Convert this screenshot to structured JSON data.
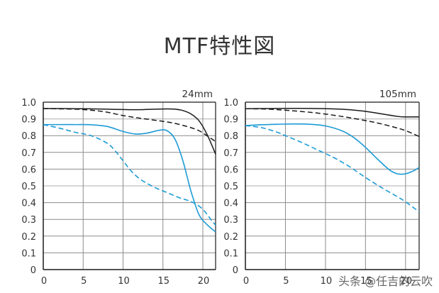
{
  "title": "MTF特性図",
  "watermark": "头条 @任吉的云吹",
  "colors": {
    "black_line": "#1a1a1a",
    "blue_line": "#1d9bd6",
    "grid_dark": "#8c8c8c",
    "grid_light": "#c8c8c8",
    "axis": "#1a1a1a",
    "text": "#333333"
  },
  "chart_data": [
    {
      "type": "line",
      "title": "24mm",
      "xlabel": "",
      "ylabel": "",
      "xlim": [
        0,
        21.6
      ],
      "ylim": [
        0,
        1.0
      ],
      "x_ticks": [
        0,
        5,
        10,
        15,
        20
      ],
      "y_ticks": [
        0,
        0.1,
        0.2,
        0.3,
        0.4,
        0.5,
        0.6,
        0.7,
        0.8,
        0.9,
        1.0
      ],
      "y_tick_labels": [
        "0",
        "0.1",
        "0.2",
        "0.3",
        "0.4",
        "0.5",
        "0.6",
        "0.7",
        "0.8",
        "0.9",
        "1.0"
      ],
      "grid": true,
      "legend": "none",
      "series": [
        {
          "name": "black-solid",
          "color": "#1a1a1a",
          "dash": false,
          "x": [
            0,
            2,
            4,
            6,
            8,
            10,
            12,
            14,
            15.5,
            16.5,
            17.5,
            18.5,
            19.5,
            20.5,
            21.6
          ],
          "y": [
            0.962,
            0.962,
            0.961,
            0.96,
            0.958,
            0.956,
            0.955,
            0.958,
            0.96,
            0.958,
            0.95,
            0.93,
            0.89,
            0.81,
            0.69
          ]
        },
        {
          "name": "black-dashed",
          "color": "#1a1a1a",
          "dash": true,
          "x": [
            0,
            2,
            4,
            6,
            8,
            10,
            12,
            14,
            16,
            18,
            19.5,
            20.5,
            21.6
          ],
          "y": [
            0.962,
            0.96,
            0.958,
            0.952,
            0.94,
            0.92,
            0.905,
            0.892,
            0.878,
            0.855,
            0.83,
            0.8,
            0.765
          ]
        },
        {
          "name": "blue-solid",
          "color": "#1d9bd6",
          "dash": false,
          "x": [
            0,
            2,
            4,
            6,
            8,
            10,
            11.5,
            13,
            14.5,
            15.5,
            16.5,
            17.5,
            18.5,
            19.5,
            20.5,
            21.6
          ],
          "y": [
            0.866,
            0.866,
            0.866,
            0.865,
            0.855,
            0.825,
            0.81,
            0.815,
            0.832,
            0.83,
            0.78,
            0.65,
            0.47,
            0.33,
            0.27,
            0.225
          ]
        },
        {
          "name": "blue-dashed",
          "color": "#1d9bd6",
          "dash": true,
          "x": [
            0,
            2,
            4,
            6,
            8,
            9,
            10,
            11,
            12,
            13,
            14,
            15,
            16,
            17,
            18,
            19,
            20,
            21,
            21.6
          ],
          "y": [
            0.866,
            0.845,
            0.82,
            0.8,
            0.755,
            0.71,
            0.65,
            0.59,
            0.545,
            0.515,
            0.49,
            0.47,
            0.45,
            0.43,
            0.415,
            0.395,
            0.36,
            0.3,
            0.265
          ]
        }
      ]
    },
    {
      "type": "line",
      "title": "105mm",
      "xlabel": "",
      "ylabel": "",
      "xlim": [
        0,
        21.7
      ],
      "ylim": [
        0,
        1.0
      ],
      "x_ticks": [
        0,
        5,
        10,
        15,
        20
      ],
      "y_ticks": [
        0,
        0.1,
        0.2,
        0.3,
        0.4,
        0.5,
        0.6,
        0.7,
        0.8,
        0.9,
        1.0
      ],
      "y_tick_labels": [
        "0",
        "0.1",
        "0.2",
        "0.3",
        "0.4",
        "0.5",
        "0.6",
        "0.7",
        "0.8",
        "0.9",
        "1.0"
      ],
      "grid": true,
      "legend": "none",
      "series": [
        {
          "name": "black-solid",
          "color": "#1a1a1a",
          "dash": false,
          "x": [
            0,
            3,
            6,
            9,
            11,
            13,
            15,
            17,
            19,
            20,
            21,
            21.7
          ],
          "y": [
            0.961,
            0.962,
            0.963,
            0.962,
            0.96,
            0.955,
            0.945,
            0.93,
            0.915,
            0.912,
            0.912,
            0.912
          ]
        },
        {
          "name": "black-dashed",
          "color": "#1a1a1a",
          "dash": true,
          "x": [
            0,
            3,
            6,
            9,
            12,
            15,
            17,
            19,
            20,
            21,
            21.7
          ],
          "y": [
            0.961,
            0.958,
            0.948,
            0.935,
            0.915,
            0.89,
            0.87,
            0.845,
            0.83,
            0.81,
            0.795
          ]
        },
        {
          "name": "blue-solid",
          "color": "#1d9bd6",
          "dash": false,
          "x": [
            0,
            2,
            4,
            6,
            8,
            10,
            12,
            13.5,
            15,
            16.5,
            18,
            19,
            20,
            21,
            21.7
          ],
          "y": [
            0.86,
            0.865,
            0.868,
            0.87,
            0.868,
            0.858,
            0.83,
            0.79,
            0.73,
            0.66,
            0.595,
            0.572,
            0.572,
            0.59,
            0.61
          ]
        },
        {
          "name": "blue-dashed",
          "color": "#1d9bd6",
          "dash": true,
          "x": [
            0,
            2,
            4,
            5,
            7,
            9,
            11,
            13,
            15,
            17,
            19,
            20,
            21,
            21.7
          ],
          "y": [
            0.86,
            0.848,
            0.82,
            0.8,
            0.76,
            0.715,
            0.67,
            0.615,
            0.55,
            0.49,
            0.435,
            0.405,
            0.37,
            0.345
          ]
        }
      ]
    }
  ]
}
